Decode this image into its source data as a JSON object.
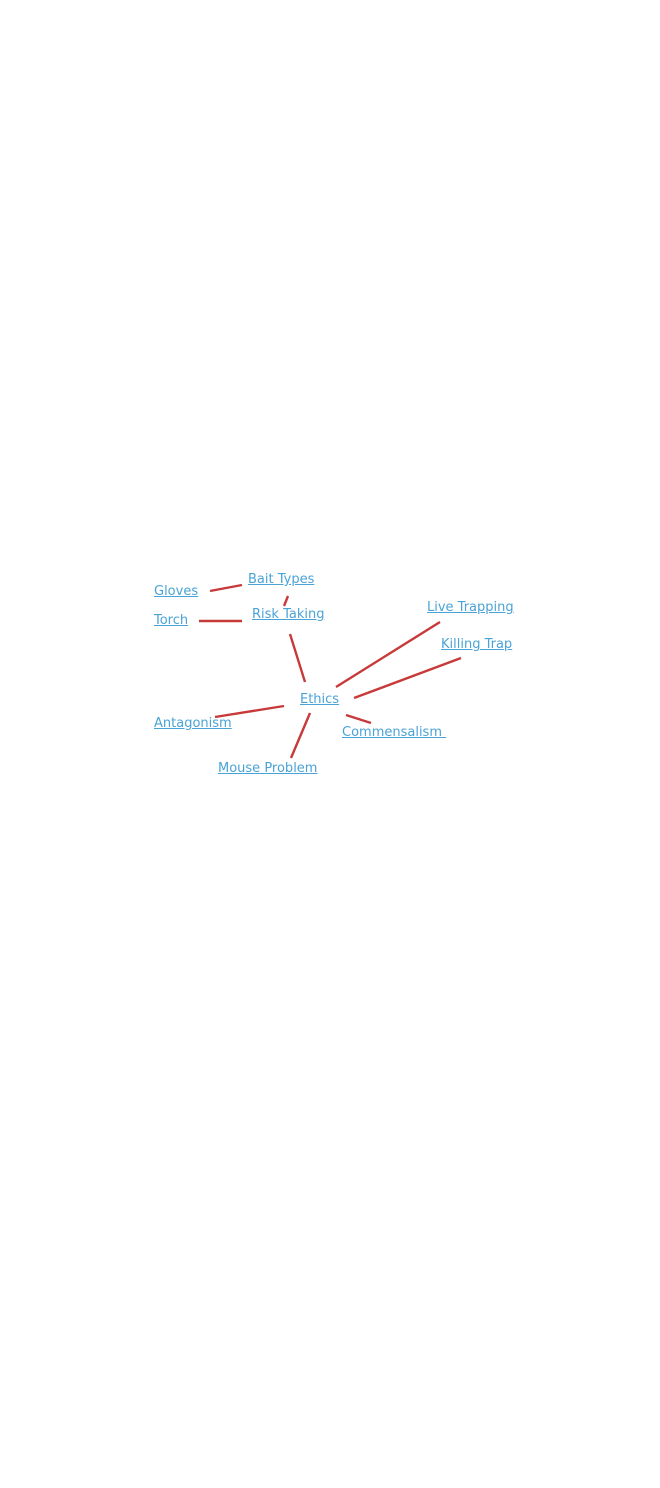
{
  "diagram": {
    "type": "mind-map",
    "line_color": "#c83a3a",
    "link_color": "#4aa3d6",
    "nodes": {
      "bait_types": "Bait Types",
      "gloves": "Gloves",
      "torch": "Torch",
      "risk_taking": "Risk Taking",
      "live_trapping": "Live Trapping",
      "killing_trap": "Killing Trap",
      "ethics": "Ethics",
      "antagonism": "Antagonism",
      "commensalism": "Commensalism ",
      "mouse_problem": "Mouse Problem"
    },
    "edges": [
      [
        "gloves",
        "bait_types"
      ],
      [
        "bait_types",
        "risk_taking"
      ],
      [
        "torch",
        "risk_taking"
      ],
      [
        "risk_taking",
        "ethics"
      ],
      [
        "live_trapping",
        "ethics"
      ],
      [
        "killing_trap",
        "ethics"
      ],
      [
        "antagonism",
        "ethics"
      ],
      [
        "commensalism",
        "ethics"
      ],
      [
        "mouse_problem",
        "ethics"
      ]
    ]
  }
}
